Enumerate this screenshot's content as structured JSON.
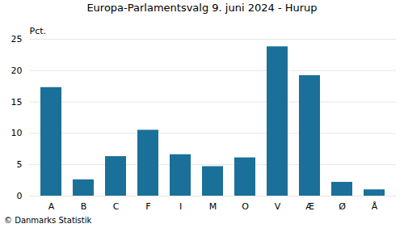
{
  "chart_data": {
    "type": "bar",
    "title": "Europa-Parlamentsvalg 9. juni 2024 - Hurup",
    "categories": [
      "A",
      "B",
      "C",
      "F",
      "I",
      "M",
      "O",
      "V",
      "Æ",
      "Ø",
      "Å"
    ],
    "values": [
      17.3,
      2.6,
      6.3,
      10.5,
      6.6,
      4.7,
      6.1,
      23.8,
      19.2,
      2.2,
      1.0
    ],
    "color": "#1a7099",
    "ylabel": "Pct.",
    "ylim": [
      0,
      25
    ],
    "yticks": [
      0,
      5,
      10,
      15,
      20,
      25
    ],
    "grid": true,
    "footer": "© Danmarks Statistik"
  }
}
